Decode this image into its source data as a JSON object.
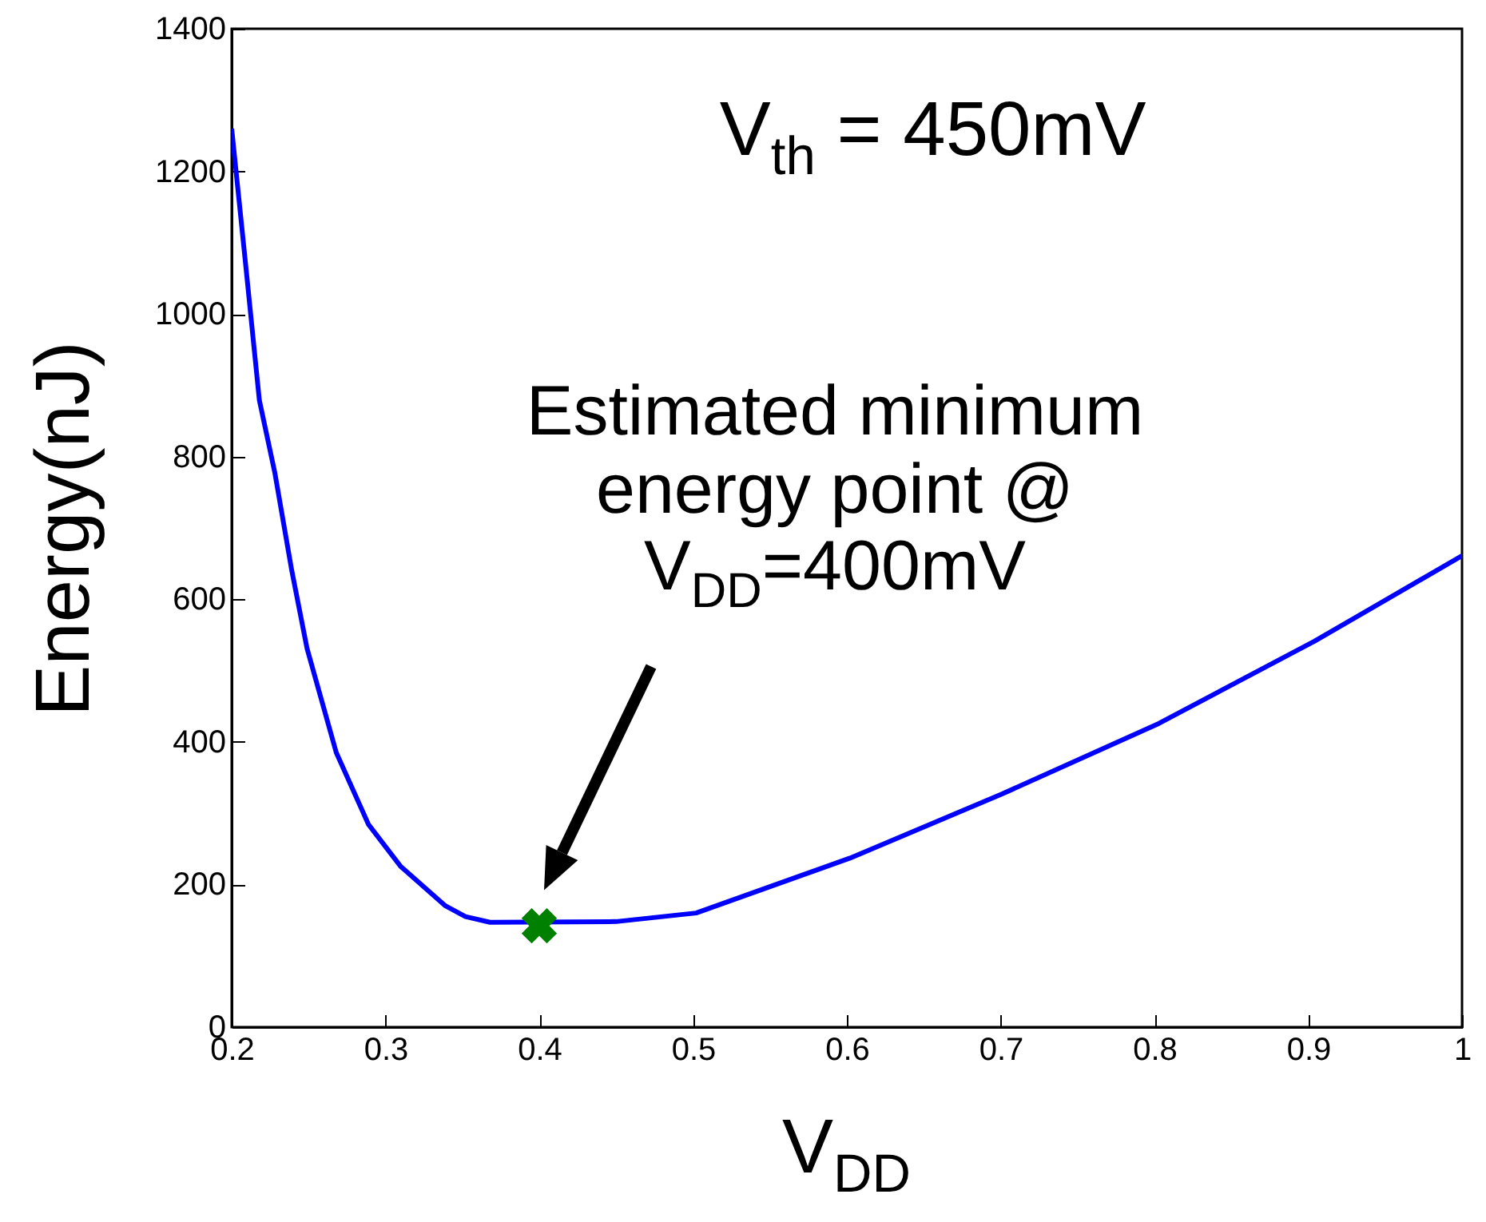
{
  "chart_data": {
    "type": "line",
    "xlabel": "V$_{DD}$",
    "ylabel": "Energy(nJ)",
    "xlim": [
      0.2,
      1.0
    ],
    "xticks": [
      0.2,
      0.3,
      0.4,
      0.5,
      0.6,
      0.7,
      0.8,
      0.9,
      1
    ],
    "ylim": [
      0,
      1400
    ],
    "yticks": [
      0,
      200,
      400,
      600,
      800,
      1000,
      1200,
      1400
    ],
    "grid": false,
    "legend": false,
    "series": [
      {
        "type": "line",
        "color": "#0000ff",
        "line_style": "solid",
        "x": [
          0.2,
          0.209,
          0.218,
          0.228,
          0.239,
          0.249,
          0.268,
          0.289,
          0.31,
          0.339,
          0.352,
          0.368,
          0.45,
          0.502,
          0.602,
          0.701,
          0.803,
          0.904,
          1.0
        ],
        "values": [
          1260,
          1071,
          879,
          778,
          641,
          531,
          385,
          284,
          225,
          170,
          155,
          147,
          148,
          160,
          237,
          327,
          426,
          541,
          661
        ]
      },
      {
        "type": "scatter",
        "color": "#008000",
        "marker": "cross",
        "x": [
          0.4
        ],
        "values": [
          142
        ]
      }
    ],
    "annotations": [
      "V$_{th}$ = 450mV",
      "Estimated minimum energy point @ V$_{DD}$=400mV"
    ]
  }
}
